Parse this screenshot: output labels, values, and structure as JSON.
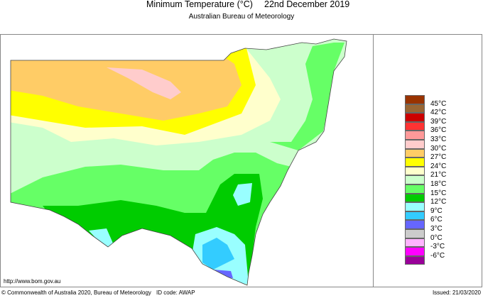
{
  "title": {
    "main": "Minimum Temperature (°C)",
    "date": "22nd December 2019"
  },
  "subtitle": "Australian Bureau of Meteorology",
  "legend": {
    "colors": [
      "#993300",
      "#996633",
      "#cc0000",
      "#ff3333",
      "#ff9999",
      "#ffcccc",
      "#ffcc66",
      "#ffff00",
      "#ffffcc",
      "#ccffcc",
      "#66ff66",
      "#00cc00",
      "#99ffff",
      "#33ccff",
      "#6666ff",
      "#cccccc",
      "#ffb3ff",
      "#ff00ff",
      "#990099"
    ],
    "labels": [
      "45°C",
      "42°C",
      "39°C",
      "36°C",
      "33°C",
      "30°C",
      "27°C",
      "24°C",
      "21°C",
      "18°C",
      "15°C",
      "12°C",
      "9°C",
      "6°C",
      "3°C",
      "0°C",
      "-3°C",
      "-6°C"
    ]
  },
  "url": "http://www.bom.gov.au",
  "footer": {
    "copyright": "© Commonwealth of Australia 2020, Bureau of Meteorology",
    "id_code": "ID code: AWAP",
    "issued": "Issued: 21/03/2020"
  }
}
